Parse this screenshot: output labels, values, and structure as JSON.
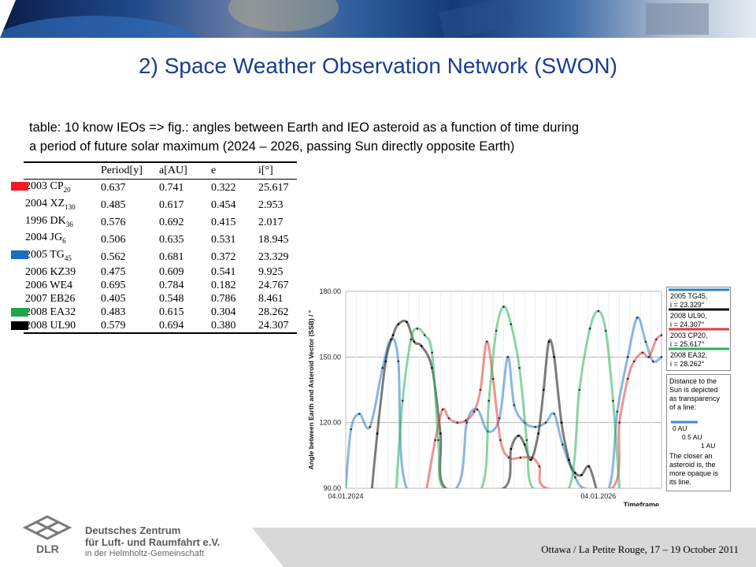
{
  "title": "2) Space Weather Observation Network (SWON)",
  "description": {
    "line1": "table: 10 know IEOs => fig.: angles between Earth and IEO asteroid as a function of time during",
    "line2": "a period of future solar maximum (2024 – 2026, passing Sun directly opposite Earth)"
  },
  "table": {
    "headers": [
      "",
      "Period[y]",
      "a[AU]",
      "e",
      "i[°]"
    ],
    "rows": [
      {
        "name": "2003 CP",
        "sub": "20",
        "period": "0.637",
        "a": "0.741",
        "e": "0.322",
        "i": "25.617"
      },
      {
        "name": "2004 XZ",
        "sub": "130",
        "period": "0.485",
        "a": "0.617",
        "e": "0.454",
        "i": "2.953"
      },
      {
        "name": "1996 DK",
        "sub": "36",
        "period": "0.576",
        "a": "0.692",
        "e": "0.415",
        "i": "2.017"
      },
      {
        "name": "2004 JG",
        "sub": "6",
        "period": "0.506",
        "a": "0.635",
        "e": "0.531",
        "i": "18.945"
      },
      {
        "name": "2005 TG",
        "sub": "45",
        "period": "0.562",
        "a": "0.681",
        "e": "0.372",
        "i": "23.329"
      },
      {
        "name": "2006 KZ39",
        "sub": "",
        "period": "0.475",
        "a": "0.609",
        "e": "0.541",
        "i": "9.925"
      },
      {
        "name": "2006 WE4",
        "sub": "",
        "period": "0.695",
        "a": "0.784",
        "e": "0.182",
        "i": "24.767"
      },
      {
        "name": "2007 EB26",
        "sub": "",
        "period": "0.405",
        "a": "0.548",
        "e": "0.786",
        "i": "8.461"
      },
      {
        "name": "2008 EA32",
        "sub": "",
        "period": "0.483",
        "a": "0.615",
        "e": "0.304",
        "i": "28.262"
      },
      {
        "name": "2008 UL90",
        "sub": "",
        "period": "0.579",
        "a": "0.694",
        "e": "0.380",
        "i": "24.307"
      }
    ],
    "row_markers": [
      {
        "row": 0,
        "color": "#ee1c25"
      },
      {
        "row": 4,
        "color": "#1a6fc1"
      },
      {
        "row": 8,
        "color": "#1fa64a"
      },
      {
        "row": 9,
        "color": "#000000"
      }
    ]
  },
  "chart_data": {
    "type": "line",
    "ylabel": "Angle between Earth and Asteroid Vector (SSB) / °",
    "xlabel": "Timeframe",
    "x_tick_labels": [
      "04.01.2024",
      "04.01.2026"
    ],
    "y_ticks": [
      "90.00",
      "120.00",
      "150.00",
      "180.00"
    ],
    "ylim": [
      90,
      180
    ],
    "x_range_months": [
      0,
      30
    ],
    "grid": "horizontal",
    "series": [
      {
        "name": "2005 TG45, i = 23.329°",
        "color": "#2b7bc8",
        "points": [
          [
            0,
            90
          ],
          [
            0.5,
            117
          ],
          [
            1.3,
            124
          ],
          [
            2.3,
            118
          ],
          [
            3.5,
            145
          ],
          [
            4.3,
            158
          ],
          [
            5,
            148
          ],
          [
            5.8,
            90
          ],
          [
            10.5,
            90
          ],
          [
            11.5,
            120
          ],
          [
            12.5,
            126
          ],
          [
            13.5,
            116
          ],
          [
            14.6,
            122
          ],
          [
            15.4,
            150
          ],
          [
            16,
            128
          ],
          [
            17,
            120
          ],
          [
            18,
            118
          ],
          [
            19,
            120
          ],
          [
            19.8,
            124
          ],
          [
            20.6,
            110
          ],
          [
            21.8,
            95
          ],
          [
            22.7,
            90
          ],
          [
            25,
            90
          ],
          [
            25.8,
            125
          ],
          [
            26.8,
            150
          ],
          [
            27.7,
            168
          ],
          [
            28.5,
            157
          ],
          [
            29.2,
            148
          ],
          [
            30,
            150
          ]
        ]
      },
      {
        "name": "2008 UL90, i = 24.307°",
        "color": "#111111",
        "points": [
          [
            2.5,
            90
          ],
          [
            3,
            115
          ],
          [
            3.8,
            148
          ],
          [
            4.5,
            160
          ],
          [
            5,
            165
          ],
          [
            5.8,
            166
          ],
          [
            6.5,
            157
          ],
          [
            7.2,
            155
          ],
          [
            8.2,
            145
          ],
          [
            9,
            115
          ],
          [
            9.5,
            90
          ],
          [
            15,
            90
          ],
          [
            15.7,
            108
          ],
          [
            16.4,
            114
          ],
          [
            17,
            110
          ],
          [
            17.6,
            103
          ],
          [
            18.3,
            115
          ],
          [
            18.8,
            135
          ],
          [
            19.3,
            157
          ],
          [
            19.8,
            150
          ],
          [
            20.5,
            120
          ],
          [
            21.2,
            103
          ],
          [
            21.8,
            97
          ],
          [
            22.4,
            96
          ],
          [
            23.1,
            100
          ],
          [
            23.8,
            90
          ]
        ]
      },
      {
        "name": "2003 CP20, i = 25.617°",
        "color": "#e43a3a",
        "points": [
          [
            7.7,
            90
          ],
          [
            8.5,
            112
          ],
          [
            9.2,
            126
          ],
          [
            9.8,
            122
          ],
          [
            10.6,
            120
          ],
          [
            11.4,
            121
          ],
          [
            12.2,
            125
          ],
          [
            12.8,
            135
          ],
          [
            13.4,
            157
          ],
          [
            14,
            140
          ],
          [
            14.7,
            112
          ],
          [
            15.5,
            104
          ],
          [
            16.6,
            104
          ],
          [
            17.7,
            104
          ],
          [
            18.4,
            100
          ],
          [
            19.1,
            90
          ],
          [
            25.3,
            90
          ],
          [
            26,
            120
          ],
          [
            26.8,
            140
          ],
          [
            27.4,
            148
          ],
          [
            28.2,
            152
          ],
          [
            28.8,
            150
          ],
          [
            29.5,
            158
          ],
          [
            30,
            160
          ]
        ]
      },
      {
        "name": "2008 EA32, i = 28.262°",
        "color": "#2ab25a",
        "points": [
          [
            4.8,
            90
          ],
          [
            5.4,
            130
          ],
          [
            6.2,
            158
          ],
          [
            6.8,
            163
          ],
          [
            7.5,
            160
          ],
          [
            8.2,
            152
          ],
          [
            8.8,
            112
          ],
          [
            9.3,
            90
          ],
          [
            12.9,
            90
          ],
          [
            13.6,
            130
          ],
          [
            14.3,
            162
          ],
          [
            15,
            173
          ],
          [
            15.7,
            165
          ],
          [
            16.5,
            145
          ],
          [
            17.2,
            112
          ],
          [
            17.8,
            90
          ],
          [
            21.2,
            90
          ],
          [
            22.2,
            135
          ],
          [
            23.2,
            163
          ],
          [
            24,
            171
          ],
          [
            24.7,
            162
          ],
          [
            25.4,
            130
          ],
          [
            26,
            90
          ]
        ]
      }
    ]
  },
  "legend": {
    "entries": [
      {
        "line1": "2005 TG45,",
        "line2": "i = 23.329°",
        "color": "#2b7bc8"
      },
      {
        "line1": "2008 UL90,",
        "line2": "i = 24.307°",
        "color": "#111111"
      },
      {
        "line1": "2003 CP20,",
        "line2": "i = 25.617°",
        "color": "#e43a3a"
      },
      {
        "line1": "2008 EA32,",
        "line2": "i = 28.262°",
        "color": "#2ab25a"
      }
    ],
    "note1": [
      "Distance to the",
      "Sun is depicted",
      "as transparency",
      "of a line:"
    ],
    "scale_labels": [
      "0 AU",
      "0.5 AU",
      "1 AU"
    ],
    "note2": [
      "The closer an",
      "asteroid is, the",
      "more opaque is",
      "its line."
    ]
  },
  "footer": {
    "logo_text": "DLR",
    "org_line1": "Deutsches Zentrum",
    "org_line2": "für Luft- und Raumfahrt e.V.",
    "org_line3": "in der Helmholtz-Gemeinschaft",
    "conference": "Ottawa / La Petite Rouge, 17 – 19 October 2011"
  }
}
